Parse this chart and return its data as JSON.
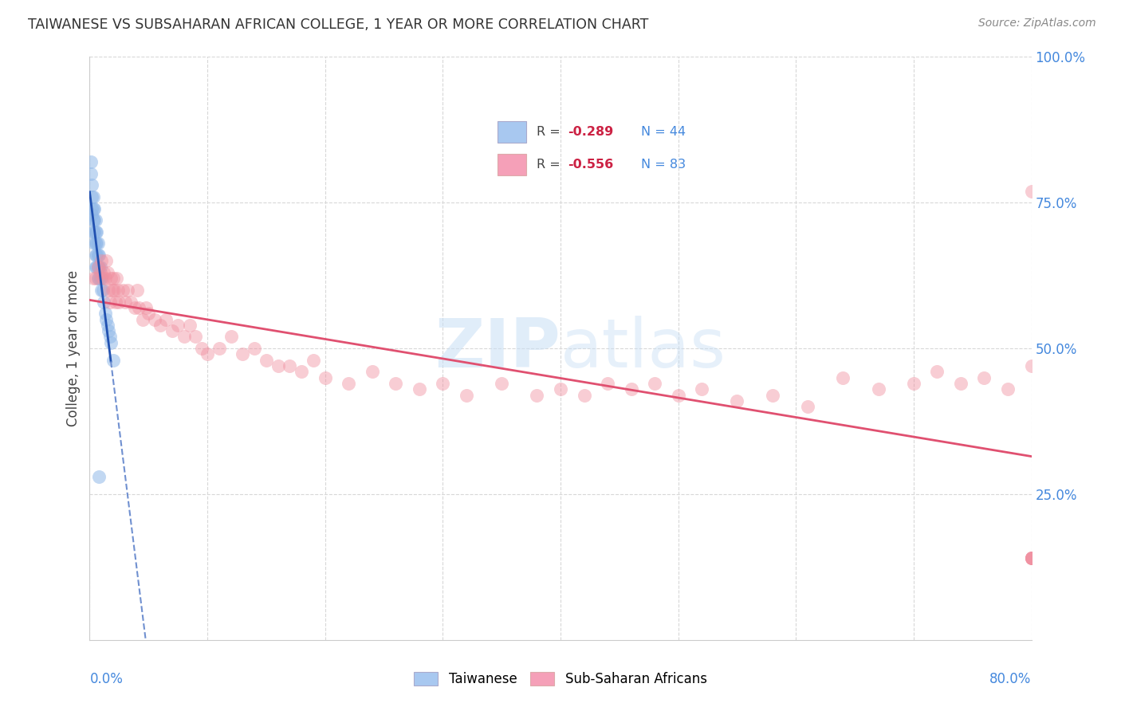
{
  "title": "TAIWANESE VS SUBSAHARAN AFRICAN COLLEGE, 1 YEAR OR MORE CORRELATION CHART",
  "source": "Source: ZipAtlas.com",
  "ylabel": "College, 1 year or more",
  "right_yticks": [
    "100.0%",
    "75.0%",
    "50.0%",
    "25.0%"
  ],
  "right_ytick_vals": [
    1.0,
    0.75,
    0.5,
    0.25
  ],
  "legend_color1": "#a8c8f0",
  "legend_color2": "#f5a0b8",
  "taiwanese_color": "#90b8e8",
  "subsaharan_color": "#f090a0",
  "trendline_taiwanese_solid_color": "#2050b0",
  "trendline_taiwanese_dash_color": "#7090d0",
  "trendline_subsaharan_color": "#e05070",
  "background_color": "#ffffff",
  "grid_color": "#d8d8d8",
  "xmin": 0.0,
  "xmax": 0.8,
  "ymin": 0.0,
  "ymax": 1.0,
  "taiwanese_x": [
    0.001,
    0.001,
    0.002,
    0.002,
    0.002,
    0.002,
    0.003,
    0.003,
    0.003,
    0.003,
    0.004,
    0.004,
    0.004,
    0.004,
    0.005,
    0.005,
    0.005,
    0.005,
    0.005,
    0.006,
    0.006,
    0.006,
    0.006,
    0.007,
    0.007,
    0.007,
    0.007,
    0.008,
    0.008,
    0.008,
    0.009,
    0.009,
    0.01,
    0.01,
    0.011,
    0.012,
    0.013,
    0.014,
    0.015,
    0.016,
    0.017,
    0.018,
    0.02,
    0.008
  ],
  "taiwanese_y": [
    0.82,
    0.8,
    0.78,
    0.76,
    0.74,
    0.73,
    0.76,
    0.74,
    0.72,
    0.7,
    0.74,
    0.72,
    0.7,
    0.68,
    0.72,
    0.7,
    0.68,
    0.66,
    0.64,
    0.7,
    0.68,
    0.66,
    0.64,
    0.68,
    0.66,
    0.64,
    0.62,
    0.66,
    0.64,
    0.62,
    0.64,
    0.62,
    0.62,
    0.6,
    0.6,
    0.58,
    0.56,
    0.55,
    0.54,
    0.53,
    0.52,
    0.51,
    0.48,
    0.28
  ],
  "subsaharan_x": [
    0.003,
    0.005,
    0.007,
    0.009,
    0.01,
    0.011,
    0.012,
    0.013,
    0.014,
    0.015,
    0.016,
    0.017,
    0.018,
    0.019,
    0.02,
    0.021,
    0.022,
    0.023,
    0.024,
    0.025,
    0.028,
    0.03,
    0.032,
    0.035,
    0.038,
    0.04,
    0.042,
    0.045,
    0.048,
    0.05,
    0.055,
    0.06,
    0.065,
    0.07,
    0.075,
    0.08,
    0.085,
    0.09,
    0.095,
    0.1,
    0.11,
    0.12,
    0.13,
    0.14,
    0.15,
    0.16,
    0.17,
    0.18,
    0.19,
    0.2,
    0.22,
    0.24,
    0.26,
    0.28,
    0.3,
    0.32,
    0.35,
    0.38,
    0.4,
    0.42,
    0.44,
    0.46,
    0.48,
    0.5,
    0.52,
    0.55,
    0.58,
    0.61,
    0.64,
    0.67,
    0.7,
    0.72,
    0.74,
    0.76,
    0.78,
    0.8,
    0.8,
    0.8,
    0.8,
    0.8,
    0.8,
    0.8,
    0.8
  ],
  "subsaharan_y": [
    0.62,
    0.62,
    0.64,
    0.63,
    0.65,
    0.62,
    0.63,
    0.62,
    0.65,
    0.63,
    0.6,
    0.58,
    0.62,
    0.6,
    0.62,
    0.6,
    0.58,
    0.62,
    0.6,
    0.58,
    0.6,
    0.58,
    0.6,
    0.58,
    0.57,
    0.6,
    0.57,
    0.55,
    0.57,
    0.56,
    0.55,
    0.54,
    0.55,
    0.53,
    0.54,
    0.52,
    0.54,
    0.52,
    0.5,
    0.49,
    0.5,
    0.52,
    0.49,
    0.5,
    0.48,
    0.47,
    0.47,
    0.46,
    0.48,
    0.45,
    0.44,
    0.46,
    0.44,
    0.43,
    0.44,
    0.42,
    0.44,
    0.42,
    0.43,
    0.42,
    0.44,
    0.43,
    0.44,
    0.42,
    0.43,
    0.41,
    0.42,
    0.4,
    0.45,
    0.43,
    0.44,
    0.46,
    0.44,
    0.45,
    0.43,
    0.77,
    0.47,
    0.14,
    0.14,
    0.14,
    0.14,
    0.14,
    0.14
  ],
  "tw_r": -0.289,
  "tw_n": 44,
  "ss_r": -0.556,
  "ss_n": 83,
  "watermark": "ZIPatlas",
  "watermark_zip_color": "#c0d8f0",
  "watermark_atlas_color": "#c0d8f0"
}
